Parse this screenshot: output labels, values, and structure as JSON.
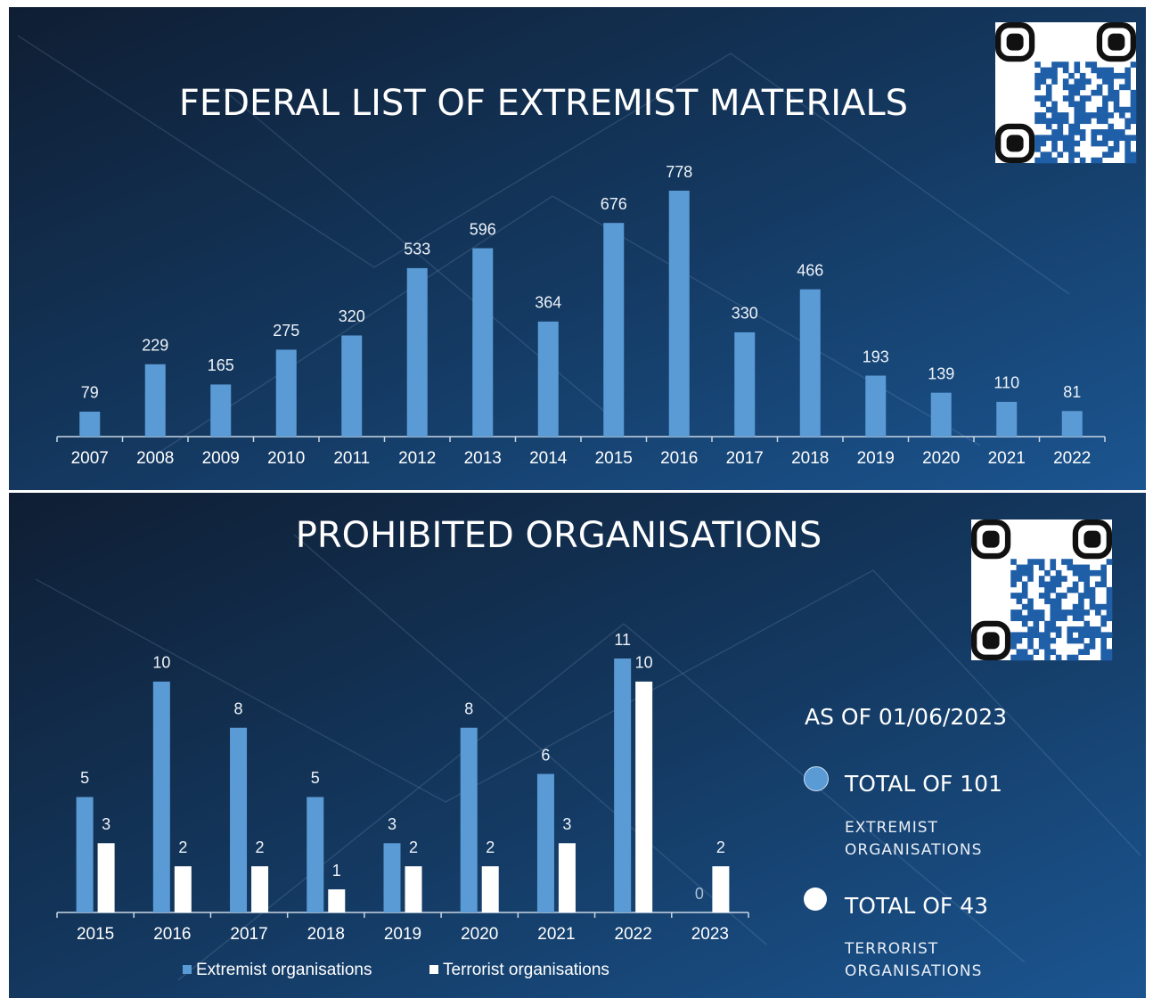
{
  "chart_data": [
    {
      "type": "bar",
      "title": "FEDERAL LIST OF EXTREMIST MATERIALS",
      "categories": [
        "2007",
        "2008",
        "2009",
        "2010",
        "2011",
        "2012",
        "2013",
        "2014",
        "2015",
        "2016",
        "2017",
        "2018",
        "2019",
        "2020",
        "2021",
        "2022"
      ],
      "values": [
        79,
        229,
        165,
        275,
        320,
        533,
        596,
        364,
        676,
        778,
        330,
        466,
        193,
        139,
        110,
        81
      ],
      "color": "#5b9bd5"
    },
    {
      "type": "bar",
      "title": "PROHIBITED ORGANISATIONS",
      "categories": [
        "2015",
        "2016",
        "2017",
        "2018",
        "2019",
        "2020",
        "2021",
        "2022",
        "2023"
      ],
      "series": [
        {
          "name": "Extremist organisations",
          "color": "#5b9bd5",
          "values": [
            5,
            10,
            8,
            5,
            3,
            8,
            6,
            11,
            0
          ]
        },
        {
          "name": "Terrorist organisations",
          "color": "#ffffff",
          "values": [
            3,
            2,
            2,
            1,
            2,
            2,
            3,
            10,
            2
          ]
        }
      ],
      "note": {
        "date": "AS OF 01/06/2023",
        "items": [
          {
            "total": "TOTAL OF 101",
            "label": "EXTREMIST ORGANISATIONS"
          },
          {
            "total": "TOTAL OF 43",
            "label": "TERRORIST ORGANISATIONS"
          }
        ]
      }
    }
  ]
}
